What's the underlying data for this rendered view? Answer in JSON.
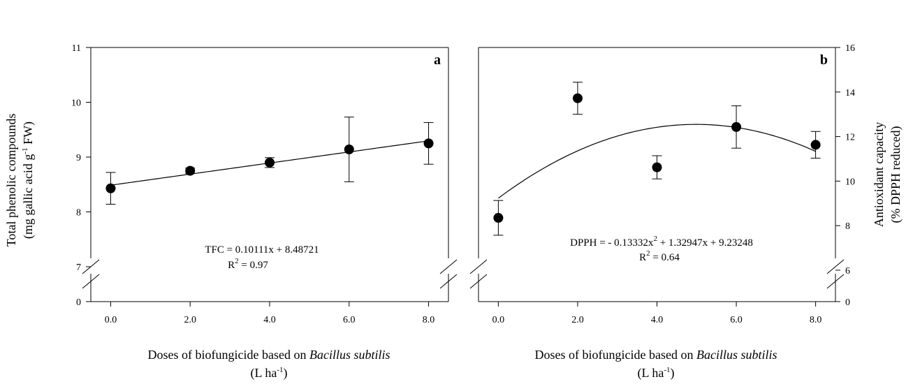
{
  "chart_data": [
    {
      "type": "scatter",
      "panel_label": "a",
      "x": [
        0,
        2,
        4,
        6,
        8
      ],
      "x_tick_labels": [
        "0.0",
        "2.0",
        "4.0",
        "6.0",
        "8.0"
      ],
      "y_tick_labels": [
        "0",
        "7",
        "8",
        "9",
        "10",
        "11"
      ],
      "xlim": [
        -0.5,
        8.5
      ],
      "ylim": [
        7,
        11
      ],
      "y_break": "0 to 7",
      "ylabel_line1": "Total phenolic compounds",
      "ylabel_line2_pre": "(mg gallic acid  g",
      "ylabel_line2_sup": "-1",
      "ylabel_line2_post": " FW)",
      "xlabel_pre": "Doses of biofungicide based on ",
      "xlabel_italic": "Bacillus subtilis",
      "xlabel_line2_pre": "(L ha",
      "xlabel_line2_sup": "-1",
      "xlabel_line2_post": ")",
      "series": [
        {
          "values": [
            8.43,
            8.75,
            8.9,
            9.14,
            9.25
          ],
          "errors": [
            0.29,
            0.05,
            0.09,
            0.59,
            0.38
          ],
          "fit": {
            "type": "linear",
            "coefficients": [
              0.10111,
              8.48721
            ]
          }
        }
      ],
      "equation": "TFC = 0.10111x + 8.48721",
      "r2_pre": "R",
      "r2_sup": "2",
      "r2_post": " = 0.97"
    },
    {
      "type": "scatter",
      "panel_label": "b",
      "x": [
        0,
        2,
        4,
        6,
        8
      ],
      "x_tick_labels": [
        "0.0",
        "2.0",
        "4.0",
        "6.0",
        "8.0"
      ],
      "y_tick_labels": [
        "0",
        "6",
        "8",
        "10",
        "12",
        "14",
        "16"
      ],
      "xlim": [
        -0.5,
        8.5
      ],
      "ylim": [
        6,
        16
      ],
      "y_break": "0 to 6",
      "y_axis_position": "right",
      "ylabel_line1": "Antioxidant capacity",
      "ylabel_line2": "(% DPPH reduced)",
      "xlabel_pre": "Doses of biofungicide based on ",
      "xlabel_italic": "Bacillus subtilis",
      "xlabel_line2_pre": "(L ha",
      "xlabel_line2_sup": "-1",
      "xlabel_line2_post": ")",
      "series": [
        {
          "values": [
            8.35,
            13.72,
            10.62,
            12.43,
            11.63
          ],
          "errors": [
            0.78,
            0.72,
            0.52,
            0.95,
            0.6
          ],
          "fit": {
            "type": "quadratic",
            "coefficients": [
              -0.13332,
              1.32947,
              9.23248
            ]
          }
        }
      ],
      "equation_pre": "DPPH = - 0.13332x",
      "equation_sup": "2",
      "equation_post": " + 1.32947x + 9.23248",
      "r2_pre": "R",
      "r2_sup": "2",
      "r2_post": " = 0.64"
    }
  ]
}
